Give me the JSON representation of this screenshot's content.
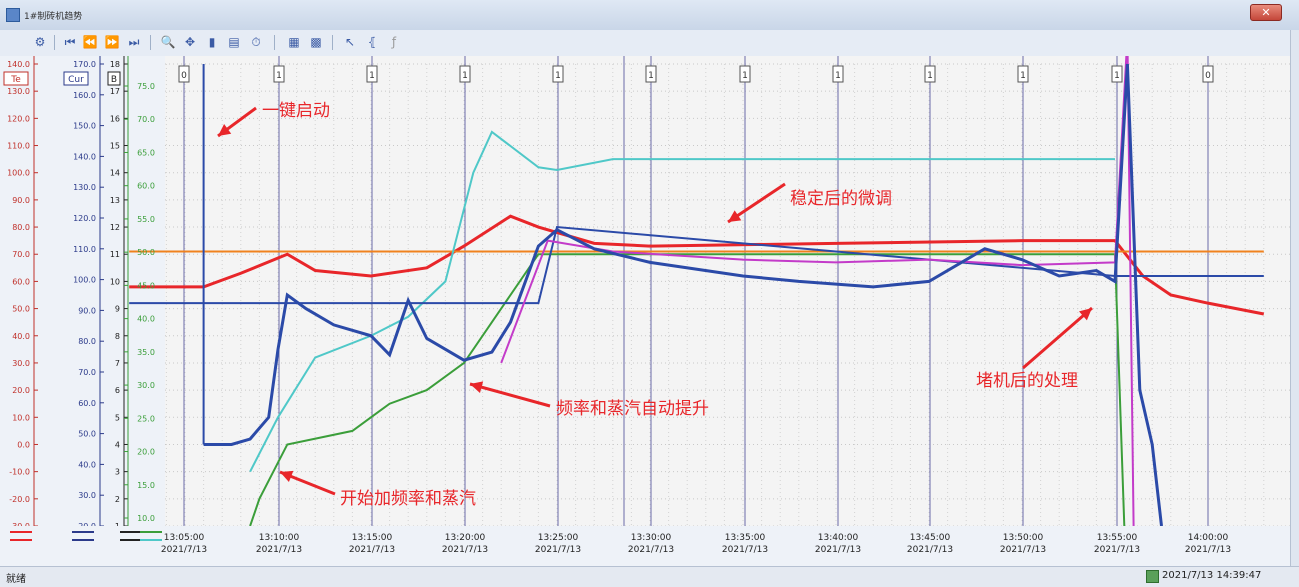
{
  "window": {
    "title": "1#制砖机趋势",
    "close_label": "✕"
  },
  "toolbar": {
    "icons": [
      "settings-icon",
      "first-icon",
      "rewind-icon",
      "fast-forward-icon",
      "last-icon",
      "zoom-in-icon",
      "pan-icon",
      "ruler-icon",
      "table-icon",
      "clock-icon",
      "grid-icon",
      "chart-icon",
      "cursor-icon",
      "bracket-icon",
      "fx-icon"
    ]
  },
  "axes": {
    "te_label": "Te",
    "cur_label": "Cur",
    "b_label": "B",
    "te_ticks": [
      "140.0",
      "130.0",
      "120.0",
      "110.0",
      "100.0",
      "90.0",
      "80.0",
      "70.0",
      "60.0",
      "50.0",
      "40.0",
      "30.0",
      "20.0",
      "10.0",
      "0.0",
      "-10.0",
      "-20.0",
      "-30.0"
    ],
    "cur_ticks": [
      "170.0",
      "160.0",
      "150.0",
      "140.0",
      "130.0",
      "120.0",
      "110.0",
      "100.0",
      "90.0",
      "80.0",
      "70.0",
      "60.0",
      "50.0",
      "40.0",
      "30.0",
      "20.0"
    ],
    "b_ticks": [
      "18",
      "17",
      "16",
      "15",
      "14",
      "13",
      "12",
      "11",
      "10",
      "9",
      "8",
      "7",
      "6",
      "5",
      "4",
      "3",
      "2",
      "1"
    ],
    "g_ticks": [
      "75.0",
      "70.0",
      "65.0",
      "60.0",
      "55.0",
      "50.0",
      "45.0",
      "40.0",
      "35.0",
      "30.0",
      "25.0",
      "20.0",
      "15.0",
      "10.0"
    ]
  },
  "time_axis": [
    {
      "time": "13:05:00",
      "date": "2021/7/13"
    },
    {
      "time": "13:10:00",
      "date": "2021/7/13"
    },
    {
      "time": "13:15:00",
      "date": "2021/7/13"
    },
    {
      "time": "13:20:00",
      "date": "2021/7/13"
    },
    {
      "time": "13:25:00",
      "date": "2021/7/13"
    },
    {
      "time": "13:30:00",
      "date": "2021/7/13"
    },
    {
      "time": "13:35:00",
      "date": "2021/7/13"
    },
    {
      "time": "13:40:00",
      "date": "2021/7/13"
    },
    {
      "time": "13:45:00",
      "date": "2021/7/13"
    },
    {
      "time": "13:50:00",
      "date": "2021/7/13"
    },
    {
      "time": "13:55:00",
      "date": "2021/7/13"
    },
    {
      "time": "14:00:00",
      "date": "2021/7/13"
    }
  ],
  "event_markers": [
    "0",
    "1",
    "1",
    "1",
    "1",
    "1",
    "1",
    "1",
    "1",
    "1",
    "1",
    "0"
  ],
  "annotations": {
    "start": "一键启动",
    "stable": "稳定后的微调",
    "auto_raise": "频率和蒸汽自动提升",
    "begin_add": "开始加频率和蒸汽",
    "jam": "堵机后的处理"
  },
  "chart_data": {
    "type": "line",
    "x_unit": "time",
    "series": [
      {
        "color": "#e8262a",
        "points": [
          [
            "13:02:00",
            58
          ],
          [
            "13:06:00",
            58
          ],
          [
            "13:08:00",
            63
          ],
          [
            "13:10:30",
            70
          ],
          [
            "13:12:00",
            64
          ],
          [
            "13:15:00",
            62
          ],
          [
            "13:18:00",
            65
          ],
          [
            "13:20:00",
            73
          ],
          [
            "13:22:30",
            84
          ],
          [
            "13:24:00",
            80
          ],
          [
            "13:27:00",
            74
          ],
          [
            "13:30:00",
            73
          ],
          [
            "13:40:00",
            74
          ],
          [
            "13:50:00",
            75
          ],
          [
            "13:55:00",
            75
          ],
          [
            "13:56:30",
            62
          ],
          [
            "13:58:00",
            55
          ],
          [
            "14:00:00",
            52
          ],
          [
            "14:03:00",
            48
          ]
        ]
      },
      {
        "color": "#f0821e",
        "points": [
          [
            "13:02:00",
            71
          ],
          [
            "14:03:00",
            71
          ]
        ]
      },
      {
        "color": "#4fc8c8",
        "points": [
          [
            "13:08:30",
            -10
          ],
          [
            "13:10:00",
            10
          ],
          [
            "13:12:00",
            32
          ],
          [
            "13:15:00",
            40
          ],
          [
            "13:17:00",
            47
          ],
          [
            "13:19:00",
            60
          ],
          [
            "13:20:30",
            100
          ],
          [
            "13:21:30",
            115
          ],
          [
            "13:24:00",
            102
          ],
          [
            "13:25:00",
            101
          ],
          [
            "13:28:00",
            105
          ],
          [
            "13:55:00",
            105
          ]
        ]
      },
      {
        "color": "#3b9e3a",
        "points": [
          [
            "13:08:30",
            -30
          ],
          [
            "13:09:00",
            -20
          ],
          [
            "13:10:30",
            0
          ],
          [
            "13:14:00",
            5
          ],
          [
            "13:16:00",
            15
          ],
          [
            "13:18:00",
            20
          ],
          [
            "13:20:00",
            30
          ],
          [
            "13:22:00",
            50
          ],
          [
            "13:24:00",
            70
          ],
          [
            "13:55:00",
            70
          ],
          [
            "13:55:30",
            -30
          ]
        ]
      },
      {
        "color": "#2b4aa8",
        "points": [
          [
            "13:02:00",
            52
          ],
          [
            "13:05:00",
            52
          ],
          [
            "13:08:00",
            52
          ],
          [
            "13:24:00",
            52
          ],
          [
            "13:25:00",
            80
          ],
          [
            "13:55:00",
            62
          ],
          [
            "14:03:00",
            62
          ]
        ]
      },
      {
        "color": "#c33bc9",
        "points": [
          [
            "13:22:00",
            30
          ],
          [
            "13:24:30",
            75
          ],
          [
            "13:28:00",
            71
          ],
          [
            "13:35:00",
            68
          ],
          [
            "13:40:00",
            67
          ],
          [
            "13:45:00",
            68
          ],
          [
            "13:50:00",
            66
          ],
          [
            "13:55:00",
            67
          ],
          [
            "13:55:40",
            150
          ],
          [
            "13:56:00",
            -30
          ]
        ]
      }
    ]
  }
}
